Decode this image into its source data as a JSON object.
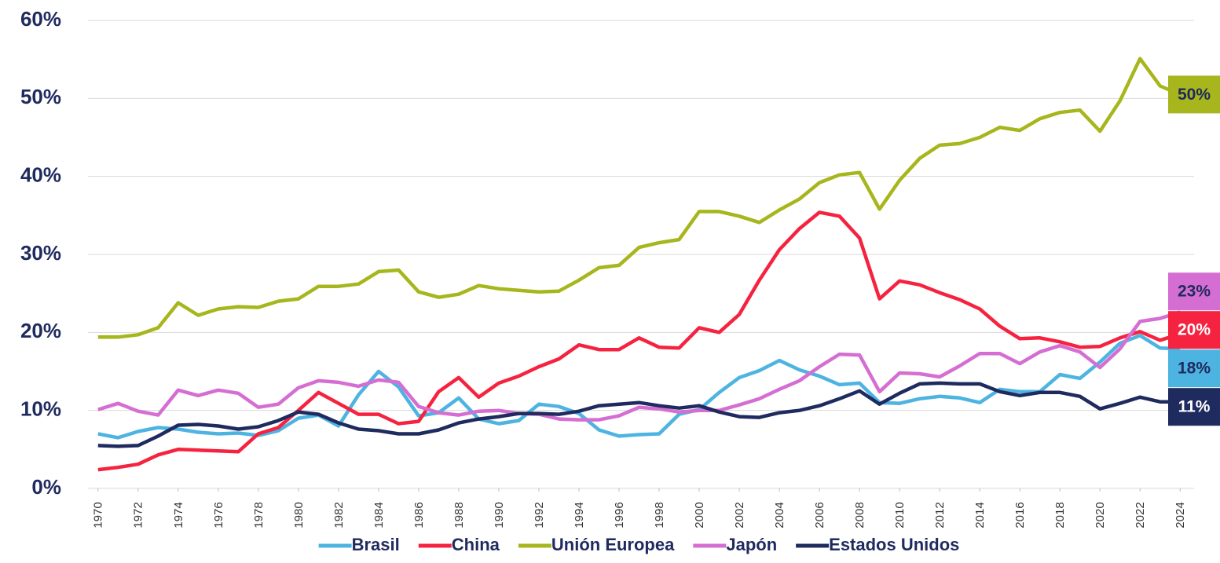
{
  "chart_data": {
    "type": "line",
    "x": [
      1970,
      1971,
      1972,
      1973,
      1974,
      1975,
      1976,
      1977,
      1978,
      1979,
      1980,
      1981,
      1982,
      1983,
      1984,
      1985,
      1986,
      1987,
      1988,
      1989,
      1990,
      1991,
      1992,
      1993,
      1994,
      1995,
      1996,
      1997,
      1998,
      1999,
      2000,
      2001,
      2002,
      2003,
      2004,
      2005,
      2006,
      2007,
      2008,
      2009,
      2010,
      2011,
      2012,
      2013,
      2014,
      2015,
      2016,
      2017,
      2018,
      2019,
      2020,
      2021,
      2022,
      2023,
      2024
    ],
    "xlim": [
      1969.5,
      2024.5
    ],
    "xticks": [
      1970,
      1972,
      1974,
      1976,
      1978,
      1980,
      1982,
      1984,
      1986,
      1988,
      1990,
      1992,
      1994,
      1996,
      1998,
      2000,
      2002,
      2004,
      2006,
      2008,
      2010,
      2012,
      2014,
      2016,
      2018,
      2020,
      2022,
      2024
    ],
    "ylim": [
      0,
      60
    ],
    "yticks": [
      {
        "value": 0,
        "label": "0%"
      },
      {
        "value": 10,
        "label": "10%"
      },
      {
        "value": 20,
        "label": "20%"
      },
      {
        "value": 30,
        "label": "30%"
      },
      {
        "value": 40,
        "label": "40%"
      },
      {
        "value": 50,
        "label": "50%"
      },
      {
        "value": 60,
        "label": "60%"
      }
    ],
    "grid": true,
    "legend": "bottom",
    "series": [
      {
        "name": "Brasil",
        "color": "#4db4e2",
        "end_label": "18%",
        "values": [
          7.0,
          6.5,
          7.3,
          7.8,
          7.6,
          7.2,
          7.0,
          7.1,
          6.8,
          7.4,
          9.0,
          9.4,
          8.0,
          12.0,
          15.0,
          13.0,
          9.3,
          9.7,
          11.6,
          8.9,
          8.3,
          8.7,
          10.8,
          10.5,
          9.6,
          7.5,
          6.7,
          6.9,
          7.0,
          9.5,
          10.1,
          12.3,
          14.2,
          15.1,
          16.4,
          15.2,
          14.4,
          13.3,
          13.5,
          11.0,
          10.9,
          11.5,
          11.8,
          11.6,
          11.0,
          12.7,
          12.4,
          12.4,
          14.6,
          14.1,
          16.2,
          18.6,
          19.6,
          18.0,
          17.9
        ]
      },
      {
        "name": "China",
        "color": "#f5233f",
        "end_label": "20%",
        "values": [
          2.4,
          2.7,
          3.1,
          4.3,
          5.0,
          4.9,
          4.8,
          4.7,
          7.0,
          7.8,
          10.0,
          12.3,
          10.9,
          9.5,
          9.5,
          8.3,
          8.6,
          12.4,
          14.2,
          11.7,
          13.5,
          14.4,
          15.6,
          16.6,
          18.4,
          17.8,
          17.8,
          19.3,
          18.1,
          18.0,
          20.6,
          20.0,
          22.3,
          26.7,
          30.6,
          33.3,
          35.4,
          34.9,
          32.1,
          24.3,
          26.6,
          26.1,
          25.1,
          24.2,
          23.0,
          20.8,
          19.2,
          19.3,
          18.8,
          18.1,
          18.2,
          19.3,
          20.1,
          19.0,
          19.8
        ]
      },
      {
        "name": "Unión Europea",
        "color": "#a6b61c",
        "end_label": "50%",
        "values": [
          19.4,
          19.4,
          19.7,
          20.6,
          23.8,
          22.2,
          23.0,
          23.3,
          23.2,
          24.0,
          24.3,
          25.9,
          25.9,
          26.2,
          27.8,
          28.0,
          25.2,
          24.5,
          24.9,
          26.0,
          25.6,
          25.4,
          25.2,
          25.3,
          26.7,
          28.3,
          28.6,
          30.9,
          31.5,
          31.9,
          35.5,
          35.5,
          34.9,
          34.1,
          35.7,
          37.1,
          39.2,
          40.2,
          40.5,
          35.8,
          39.5,
          42.3,
          44.0,
          44.2,
          45.0,
          46.3,
          45.9,
          47.4,
          48.2,
          48.5,
          45.8,
          49.7,
          55.1,
          51.6,
          50.5
        ]
      },
      {
        "name": "Japón",
        "color": "#d56ed2",
        "end_label": "23%",
        "values": [
          10.1,
          10.9,
          9.9,
          9.4,
          12.6,
          11.9,
          12.6,
          12.2,
          10.4,
          10.8,
          12.9,
          13.8,
          13.6,
          13.1,
          13.9,
          13.6,
          10.5,
          9.7,
          9.4,
          9.9,
          10.0,
          9.6,
          9.5,
          8.9,
          8.8,
          8.8,
          9.3,
          10.4,
          10.2,
          9.8,
          10.0,
          10.0,
          10.7,
          11.5,
          12.7,
          13.8,
          15.6,
          17.2,
          17.1,
          12.4,
          14.8,
          14.7,
          14.3,
          15.7,
          17.3,
          17.3,
          16.0,
          17.5,
          18.3,
          17.5,
          15.5,
          17.9,
          21.4,
          21.8,
          22.6
        ]
      },
      {
        "name": "Estados Unidos",
        "color": "#1f2a5e",
        "end_label": "11%",
        "values": [
          5.5,
          5.4,
          5.5,
          6.7,
          8.1,
          8.2,
          8.0,
          7.6,
          7.9,
          8.7,
          9.8,
          9.5,
          8.4,
          7.6,
          7.4,
          7.0,
          7.0,
          7.5,
          8.4,
          8.9,
          9.2,
          9.6,
          9.6,
          9.5,
          9.9,
          10.6,
          10.8,
          11.0,
          10.6,
          10.3,
          10.6,
          9.8,
          9.2,
          9.1,
          9.7,
          10.0,
          10.6,
          11.5,
          12.5,
          10.8,
          12.2,
          13.4,
          13.5,
          13.4,
          13.4,
          12.4,
          11.9,
          12.3,
          12.3,
          11.8,
          10.2,
          10.9,
          11.7,
          11.1,
          11.1
        ]
      }
    ]
  }
}
